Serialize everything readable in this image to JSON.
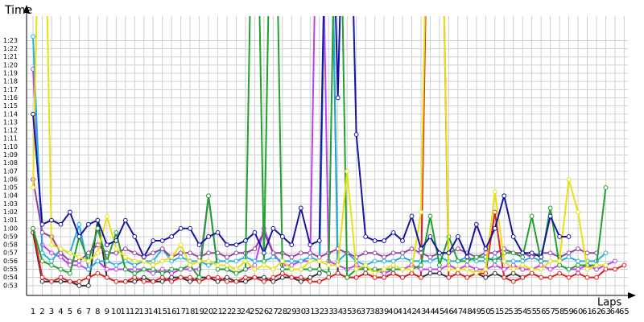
{
  "chart_data": {
    "type": "line",
    "y_label": "Time",
    "x_label": "Laps",
    "x": [
      1,
      2,
      3,
      4,
      5,
      6,
      7,
      8,
      9,
      10,
      11,
      12,
      13,
      14,
      15,
      16,
      17,
      18,
      19,
      20,
      21,
      22,
      23,
      24,
      25,
      26,
      27,
      28,
      29,
      30,
      31,
      32,
      33,
      34,
      35,
      36,
      37,
      38,
      39,
      40,
      41,
      42,
      43,
      44,
      45,
      46,
      47,
      48,
      49,
      50,
      51,
      52,
      53,
      54,
      55,
      56,
      57,
      58,
      59,
      60,
      61,
      62,
      63,
      64,
      65
    ],
    "xlim": [
      0.3,
      65.4
    ],
    "xticks": [
      1,
      2,
      3,
      4,
      5,
      6,
      7,
      8,
      9,
      10,
      11,
      12,
      13,
      14,
      15,
      16,
      17,
      18,
      19,
      20,
      21,
      22,
      23,
      24,
      25,
      26,
      27,
      28,
      29,
      30,
      31,
      32,
      33,
      34,
      35,
      36,
      37,
      38,
      39,
      40,
      41,
      42,
      43,
      44,
      45,
      46,
      47,
      48,
      49,
      50,
      51,
      52,
      53,
      54,
      55,
      56,
      57,
      58,
      59,
      60,
      61,
      62,
      63,
      64,
      65
    ],
    "ylim": [
      51.8,
      86
    ],
    "yticks": [
      {
        "value": 53,
        "label": "0:53"
      },
      {
        "value": 54,
        "label": "0:54"
      },
      {
        "value": 55,
        "label": "0:55"
      },
      {
        "value": 56,
        "label": "0:56"
      },
      {
        "value": 57,
        "label": "0:57"
      },
      {
        "value": 58,
        "label": "0:58"
      },
      {
        "value": 59,
        "label": "0:59"
      },
      {
        "value": 60,
        "label": "1:00"
      },
      {
        "value": 61,
        "label": "1:01"
      },
      {
        "value": 62,
        "label": "1:02"
      },
      {
        "value": 63,
        "label": "1:03"
      },
      {
        "value": 64,
        "label": "1:04"
      },
      {
        "value": 65,
        "label": "1:05"
      },
      {
        "value": 66,
        "label": "1:06"
      },
      {
        "value": 67,
        "label": "1:07"
      },
      {
        "value": 68,
        "label": "1:08"
      },
      {
        "value": 69,
        "label": "1:09"
      },
      {
        "value": 70,
        "label": "1:10"
      },
      {
        "value": 71,
        "label": "1:11"
      },
      {
        "value": 72,
        "label": "1:12"
      },
      {
        "value": 73,
        "label": "1:13"
      },
      {
        "value": 74,
        "label": "1:14"
      },
      {
        "value": 75,
        "label": "1:15"
      },
      {
        "value": 76,
        "label": "1:16"
      },
      {
        "value": 77,
        "label": "1:17"
      },
      {
        "value": 78,
        "label": "1:18"
      },
      {
        "value": 79,
        "label": "1:19"
      },
      {
        "value": 80,
        "label": "1:20"
      },
      {
        "value": 81,
        "label": "1:21"
      },
      {
        "value": 82,
        "label": "1:22"
      },
      {
        "value": 83,
        "label": "1:23"
      }
    ],
    "grid": true,
    "series": [
      {
        "color": "#30303a",
        "values": [
          59.5,
          53.5,
          53.5,
          53.5,
          53.5,
          53,
          53,
          61,
          54,
          53.5,
          53.5,
          53.5,
          54,
          53.5,
          53.5,
          54,
          54,
          53.5,
          54,
          54,
          53.5,
          54,
          53.5,
          53.5,
          54,
          54,
          53.5,
          54,
          54,
          53.5,
          54,
          54.5,
          120,
          54.5,
          54,
          54,
          54.5,
          54,
          54,
          54.5,
          54,
          54.5,
          54,
          54.5,
          54.5,
          54,
          54.5,
          54,
          54.5,
          54,
          54.5,
          54,
          54.5,
          54,
          54.5,
          54,
          null,
          null,
          null,
          null,
          null,
          null,
          null,
          null,
          null
        ]
      },
      {
        "color": "#e02020",
        "values": [
          60,
          54,
          53.5,
          54,
          53.5,
          53.5,
          54,
          54.5,
          54,
          53.5,
          53.5,
          54,
          53.5,
          53.5,
          54,
          53.5,
          54,
          54,
          53.5,
          54,
          54,
          53.5,
          53.5,
          54,
          54,
          53.5,
          54,
          54.5,
          54,
          54,
          53.5,
          53.5,
          54,
          54.5,
          54,
          54,
          54.5,
          54,
          54,
          54.5,
          54,
          54.5,
          54,
          120,
          120,
          54,
          54.5,
          54,
          54.5,
          54.5,
          62,
          54,
          53.5,
          54,
          54.5,
          54,
          54,
          54.5,
          54,
          54.5,
          54,
          54,
          55,
          55,
          55.5
        ]
      },
      {
        "color": "#c040f0",
        "values": [
          79.5,
          58,
          57,
          56.5,
          55.5,
          55.5,
          55,
          56,
          55,
          55,
          55,
          55,
          55,
          54.5,
          55,
          54.5,
          55,
          55,
          55,
          64,
          55,
          55,
          54.5,
          55,
          55.5,
          60,
          57,
          55.5,
          55.5,
          56,
          56,
          120,
          56,
          55.5,
          55,
          55.5,
          55,
          55,
          54.5,
          55,
          55,
          55.5,
          55,
          55,
          55,
          55.5,
          55,
          55.5,
          55,
          55,
          55.5,
          55,
          55.5,
          55,
          55,
          55.5,
          55,
          55.5,
          55,
          55,
          55.5,
          55,
          55.5,
          56,
          null
        ]
      },
      {
        "color": "#20b0e0",
        "values": [
          83.5,
          57,
          56,
          57.5,
          57,
          60.5,
          55,
          56,
          56,
          55.5,
          56,
          55.5,
          56,
          56,
          57.5,
          56,
          56.5,
          56,
          56,
          55.5,
          56,
          56,
          56,
          56.5,
          56,
          56,
          56.5,
          56,
          56,
          56,
          56.5,
          56,
          120,
          56,
          57,
          56,
          55.5,
          56,
          56,
          56,
          56.5,
          56,
          56,
          56,
          56.5,
          56,
          56,
          56.5,
          56,
          56,
          56.5,
          56,
          56,
          56,
          56.5,
          56,
          56,
          56,
          56.5,
          56,
          56,
          56,
          57,
          null,
          null
        ]
      },
      {
        "color": "#9040a0",
        "values": [
          66,
          59.5,
          59,
          57,
          56,
          56,
          57,
          58,
          57,
          57,
          57.5,
          57,
          56.5,
          57,
          57.5,
          56.5,
          57,
          57,
          56.5,
          57,
          57,
          56.5,
          57,
          57,
          57.5,
          59.5,
          57,
          57,
          56.5,
          57,
          57,
          56.5,
          57,
          57.5,
          57,
          56.5,
          57,
          57,
          56.5,
          57,
          57,
          57.5,
          57,
          56.5,
          57,
          57,
          57.5,
          57,
          56.5,
          57,
          57,
          57.5,
          57,
          57,
          56.5,
          57,
          57,
          56.5,
          57,
          57.5,
          57,
          57,
          null,
          null,
          null
        ]
      },
      {
        "color": "#20a030",
        "values": [
          60,
          56,
          55.5,
          55,
          54.5,
          59,
          56,
          60,
          56,
          59.5,
          55,
          54.5,
          55,
          55,
          54.5,
          55,
          55,
          55.5,
          54,
          64,
          55,
          55,
          54.5,
          55,
          120,
          56,
          120,
          55,
          55,
          55,
          55,
          55,
          54.5,
          120,
          54,
          55,
          55,
          55,
          55,
          55,
          55,
          55,
          55.5,
          61.5,
          55.5,
          59,
          56,
          56,
          56.5,
          56.5,
          56,
          57,
          57,
          56.5,
          61.5,
          56,
          62.5,
          55.5,
          55,
          55.5,
          55.5,
          55.5,
          65,
          null,
          null
        ]
      },
      {
        "color": "#e8e010",
        "values": [
          65,
          120,
          58,
          57.5,
          57,
          56.5,
          56,
          57,
          61.5,
          57.5,
          56.5,
          56,
          56,
          55.5,
          56,
          56.5,
          58,
          55.5,
          56,
          56,
          55.5,
          55.5,
          55,
          56,
          55,
          55.5,
          55,
          56,
          55,
          55,
          56,
          56,
          55.5,
          55.5,
          67,
          55,
          55.5,
          54.5,
          55,
          55.5,
          55,
          55,
          62,
          120,
          120,
          55,
          55,
          55,
          54.5,
          55,
          64.5,
          56,
          55,
          55.5,
          55,
          55,
          56,
          56,
          66,
          62,
          55,
          55.5,
          55.5,
          null,
          null
        ]
      },
      {
        "color": "#1414a0",
        "values": [
          74,
          60.5,
          61,
          60.5,
          62,
          59,
          60.5,
          61,
          58,
          58.5,
          61,
          59,
          56.5,
          58.5,
          58.5,
          59,
          60,
          60,
          58,
          59,
          59.5,
          58,
          58,
          58.5,
          59.5,
          57,
          60,
          59,
          58,
          62.5,
          58,
          58.5,
          120,
          76,
          120,
          71.5,
          59,
          58.5,
          58.5,
          59.5,
          58.5,
          61.5,
          57.5,
          59,
          57,
          57,
          59,
          56.5,
          60.5,
          57.5,
          60,
          64,
          59,
          57,
          57,
          56.5,
          61.5,
          59,
          59,
          null,
          null,
          null,
          null,
          null,
          null
        ]
      }
    ]
  }
}
